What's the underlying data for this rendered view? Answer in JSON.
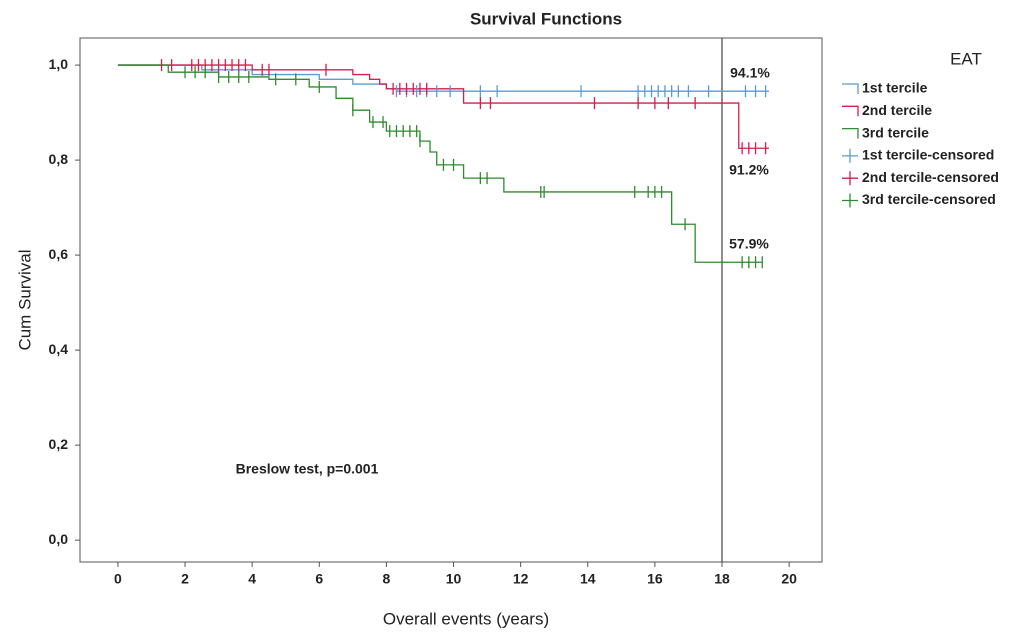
{
  "chart_data": {
    "type": "survival",
    "title": "Survival Functions",
    "x_label": "Overall events (years)",
    "y_label": "Cum Survival",
    "legend_title": "EAT",
    "xlim": [
      -1.13,
      20.98
    ],
    "ylim": [
      -0.046,
      1.057
    ],
    "xticks": [
      0,
      2,
      4,
      6,
      8,
      10,
      12,
      14,
      16,
      18,
      20
    ],
    "yticks": [
      {
        "value": 0,
        "label": "0,0"
      },
      {
        "value": 0.2,
        "label": "0,2"
      },
      {
        "value": 0.4,
        "label": "0,4"
      },
      {
        "value": 0.6,
        "label": "0,6"
      },
      {
        "value": 0.8,
        "label": "0,8"
      },
      {
        "value": 1,
        "label": "1,0"
      }
    ],
    "reference_line_x": 18,
    "annotations": [
      "94.1%",
      "91.2%",
      "57.9%",
      "Breslow test, p=0.001"
    ],
    "series": [
      {
        "name": "1st tercile",
        "mark": "step",
        "color": "#5b9bd5",
        "x": [
          0,
          2.5,
          4,
          6,
          7,
          8,
          8.3,
          19.4
        ],
        "values": [
          1,
          0.99,
          0.98,
          0.97,
          0.96,
          0.95,
          0.945,
          0.945
        ]
      },
      {
        "name": "2nd tercile",
        "mark": "step",
        "color": "#d21f4f",
        "x": [
          0,
          4,
          7,
          7.5,
          7.8,
          8,
          10.3,
          18.5,
          19.4
        ],
        "values": [
          1,
          0.99,
          0.98,
          0.97,
          0.96,
          0.95,
          0.92,
          0.825,
          0.825
        ]
      },
      {
        "name": "3rd tercile",
        "mark": "step",
        "color": "#2e8b2e",
        "x": [
          0,
          1.5,
          3,
          4.5,
          5.7,
          6.5,
          7,
          7.5,
          8,
          9,
          9.3,
          9.5,
          10.3,
          11.5,
          16.5,
          17.2,
          19.2
        ],
        "values": [
          1,
          0.985,
          0.975,
          0.97,
          0.954,
          0.93,
          0.905,
          0.88,
          0.861,
          0.84,
          0.817,
          0.79,
          0.762,
          0.733,
          0.665,
          0.585,
          0.585
        ]
      },
      {
        "name": "1st tercile-censored",
        "mark": "cross",
        "color": "#5b9bd5",
        "x": [
          8.3,
          8.6,
          8.9,
          9.2,
          9.5,
          9.9,
          10.8,
          11.3,
          13.8,
          15.5,
          15.7,
          15.9,
          16.1,
          16.3,
          16.5,
          16.7,
          17.0,
          17.6,
          18.7,
          19.0,
          19.3
        ],
        "values": [
          0.945,
          0.945,
          0.945,
          0.945,
          0.945,
          0.945,
          0.945,
          0.945,
          0.945,
          0.945,
          0.945,
          0.945,
          0.945,
          0.945,
          0.945,
          0.945,
          0.945,
          0.945,
          0.945,
          0.945,
          0.945
        ]
      },
      {
        "name": "2nd tercile-censored",
        "mark": "cross",
        "color": "#d21f4f",
        "x": [
          1.3,
          1.6,
          2.2,
          2.4,
          2.6,
          2.8,
          3.0,
          3.2,
          3.4,
          3.6,
          3.8,
          4.3,
          4.5,
          6.2,
          8.2,
          8.4,
          8.6,
          8.8,
          9.0,
          9.2,
          10.8,
          11.1,
          14.2,
          15.5,
          16.0,
          16.4,
          17.2,
          18.6,
          18.8,
          19.0,
          19.3
        ],
        "values": [
          1,
          1,
          1,
          1,
          1,
          1,
          1,
          1,
          1,
          1,
          1,
          0.99,
          0.99,
          0.99,
          0.95,
          0.95,
          0.95,
          0.95,
          0.95,
          0.95,
          0.92,
          0.92,
          0.92,
          0.92,
          0.92,
          0.92,
          0.92,
          0.825,
          0.825,
          0.825,
          0.825
        ]
      },
      {
        "name": "3rd tercile-censored",
        "mark": "cross",
        "color": "#2e8b2e",
        "x": [
          2.0,
          2.3,
          2.6,
          3.0,
          3.3,
          3.6,
          3.9,
          4.7,
          5.3,
          6.0,
          7.0,
          7.6,
          7.9,
          8.1,
          8.3,
          8.5,
          8.7,
          8.9,
          9.0,
          9.7,
          10.0,
          10.8,
          11.0,
          12.6,
          12.7,
          15.4,
          15.8,
          16.0,
          16.2,
          16.9,
          18.6,
          18.8,
          19.0,
          19.2
        ],
        "values": [
          0.985,
          0.985,
          0.985,
          0.975,
          0.975,
          0.975,
          0.975,
          0.97,
          0.97,
          0.954,
          0.905,
          0.88,
          0.88,
          0.861,
          0.861,
          0.861,
          0.861,
          0.861,
          0.84,
          0.79,
          0.79,
          0.762,
          0.762,
          0.733,
          0.733,
          0.733,
          0.733,
          0.733,
          0.733,
          0.665,
          0.585,
          0.585,
          0.585,
          0.585
        ]
      }
    ]
  }
}
